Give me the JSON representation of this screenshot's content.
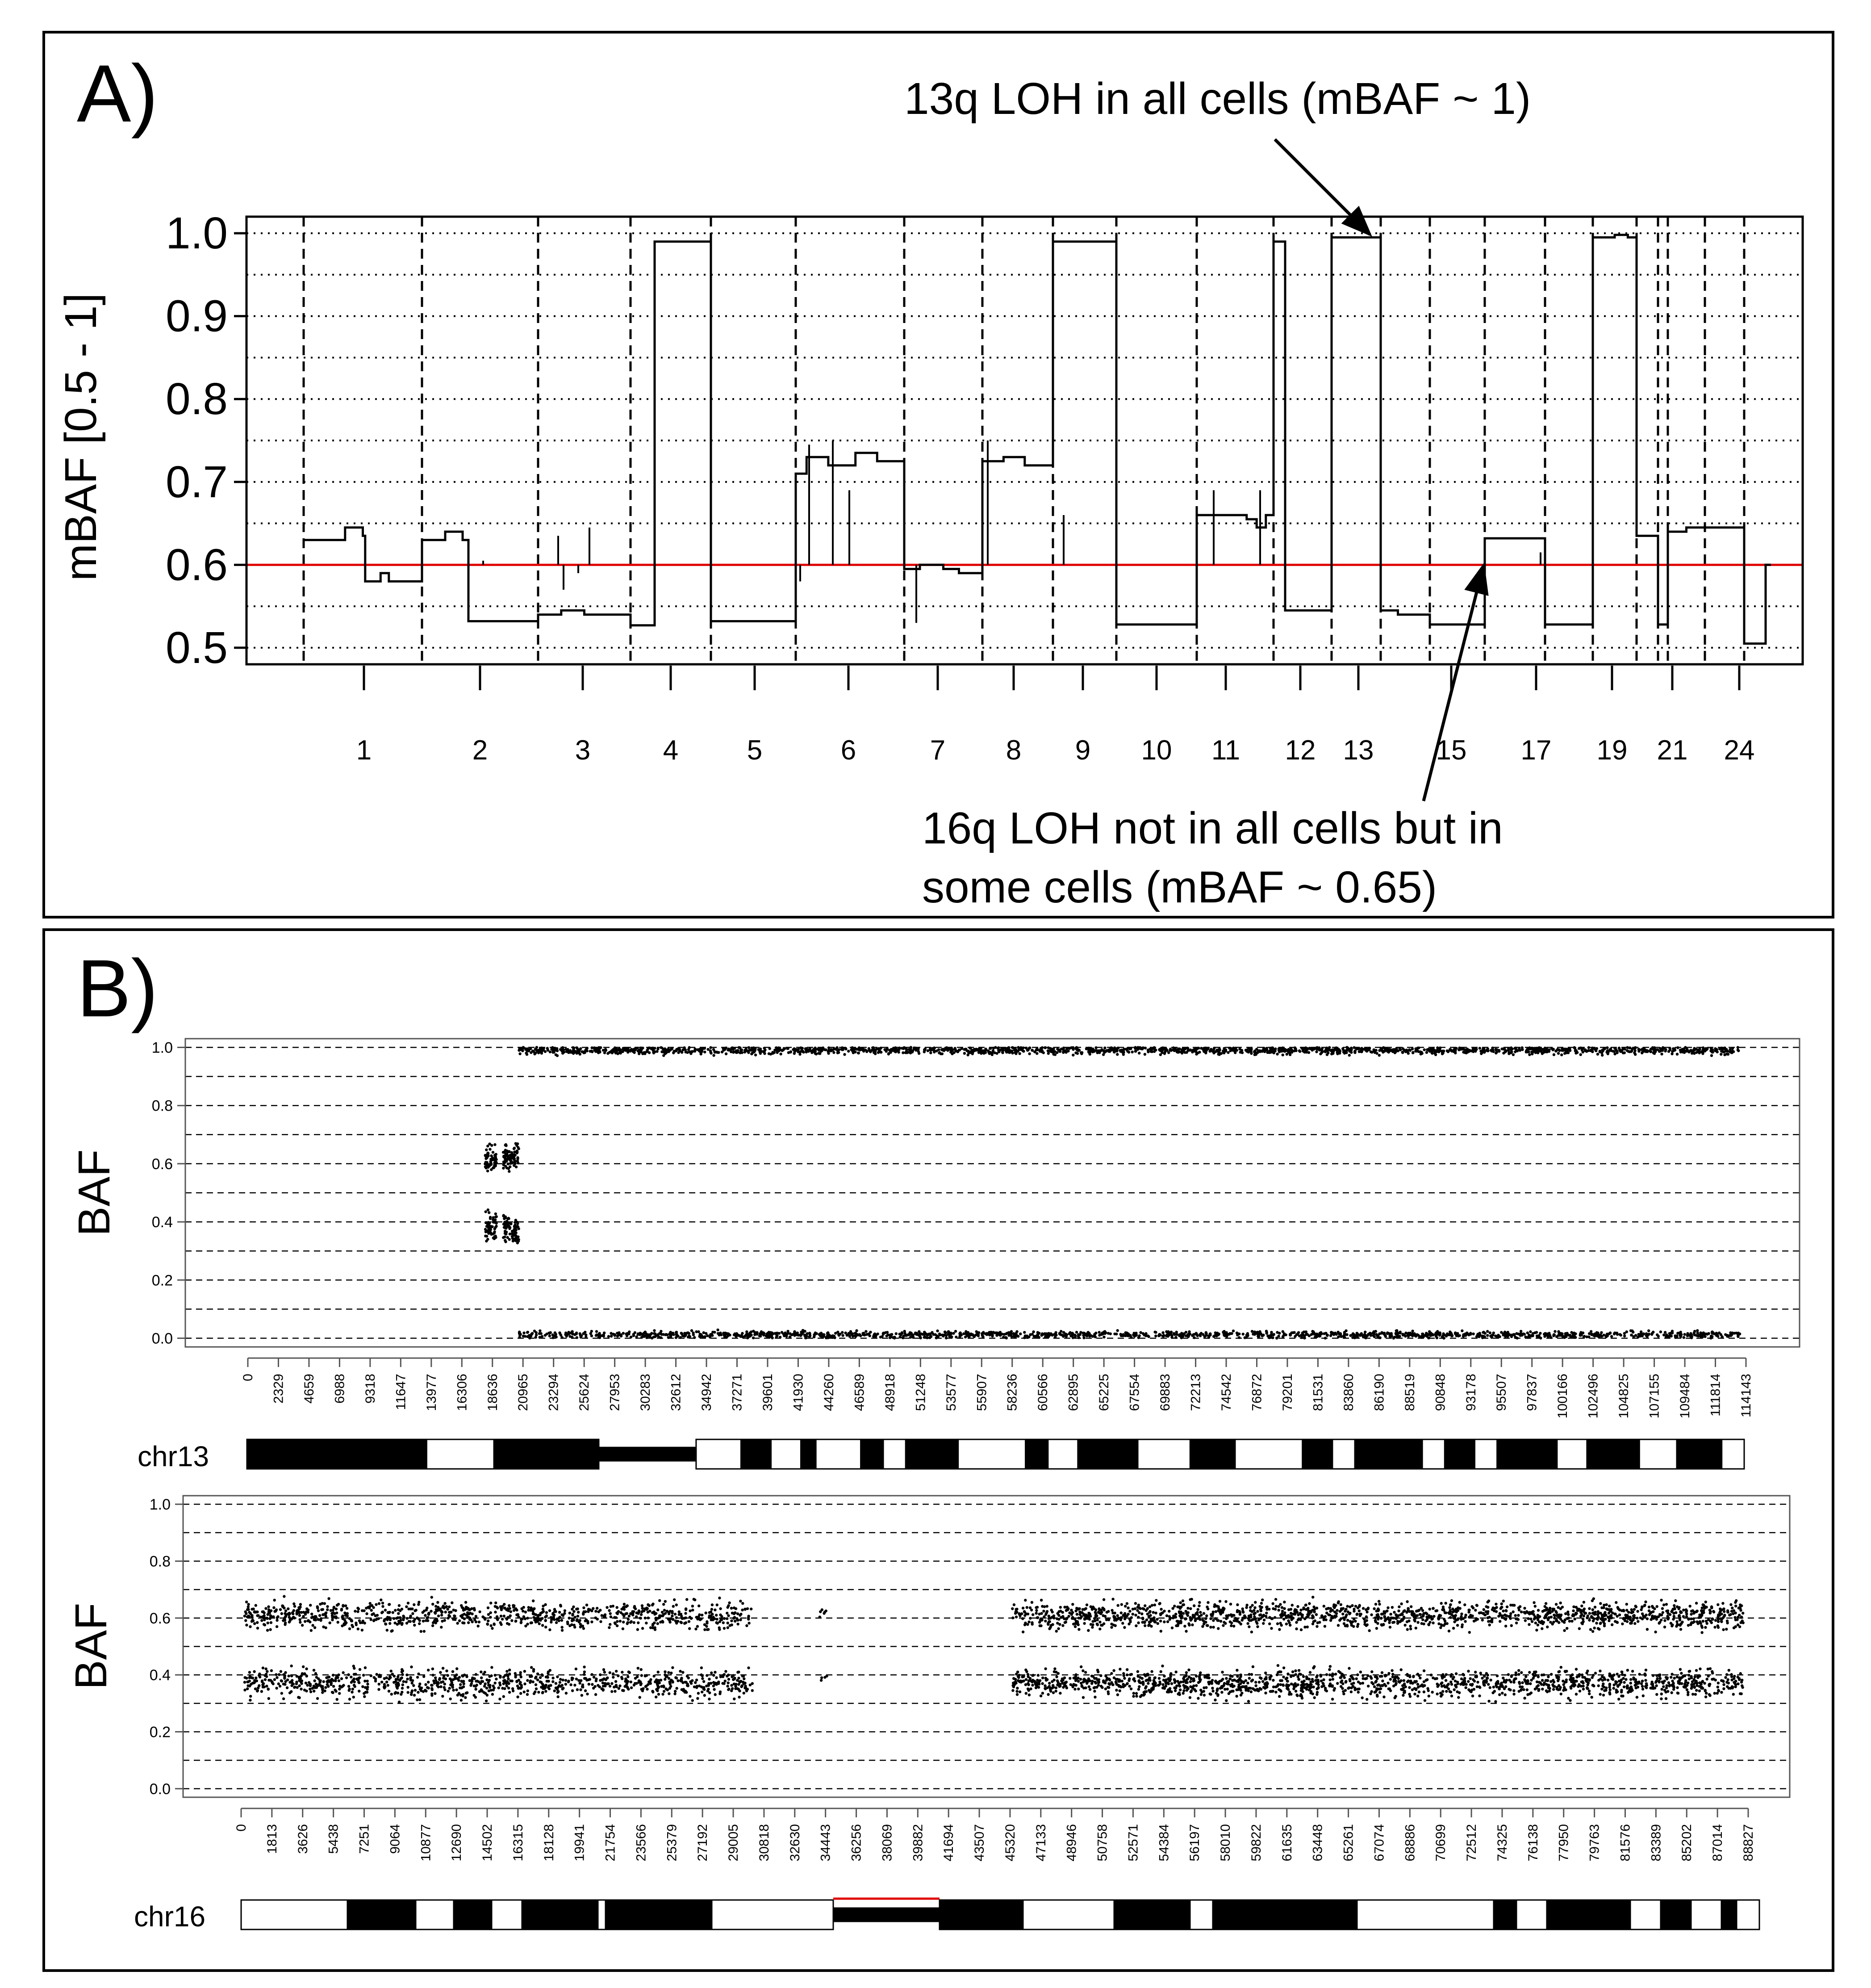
{
  "colors": {
    "reference_line": "#e00000",
    "ink": "#000000"
  },
  "chart_data": [
    {
      "panel_label": "A)",
      "type": "line",
      "ylabel": "mBAF [0.5 - 1]",
      "yticks": [
        "0.5",
        "0.6",
        "0.7",
        "0.8",
        "0.9",
        "1.0"
      ],
      "ylim": [
        0.48,
        1.02
      ],
      "x_tick_labels": [
        "1",
        "2",
        "3",
        "4",
        "5",
        "6",
        "7",
        "8",
        "9",
        "10",
        "11",
        "12",
        "13",
        "15",
        "17",
        "19",
        "21",
        "24"
      ],
      "grid": "dotted horizontal at 0.05 steps; dashed vertical chromosome boundaries",
      "reference_line": {
        "y": 0.6,
        "color": "red"
      },
      "series": [
        {
          "values": [
            {
              "chr": "1",
              "segments": [
                [
                  0.0,
                  0.35,
                  0.63
                ],
                [
                  0.35,
                  0.5,
                  0.645
                ],
                [
                  0.5,
                  0.52,
                  0.635
                ],
                [
                  0.52,
                  0.65,
                  0.58
                ],
                [
                  0.65,
                  0.72,
                  0.59
                ],
                [
                  0.72,
                  1.0,
                  0.58
                ]
              ]
            },
            {
              "chr": "2",
              "segments": [
                [
                  0.0,
                  0.2,
                  0.63
                ],
                [
                  0.2,
                  0.35,
                  0.64
                ],
                [
                  0.35,
                  0.4,
                  0.63
                ],
                [
                  0.4,
                  1.0,
                  0.532
                ]
              ]
            },
            {
              "chr": "3",
              "segments": [
                [
                  0.0,
                  0.25,
                  0.54
                ],
                [
                  0.25,
                  0.5,
                  0.545
                ],
                [
                  0.5,
                  1.0,
                  0.54
                ]
              ]
            },
            {
              "chr": "4",
              "segments": [
                [
                  0.0,
                  0.3,
                  0.527
                ],
                [
                  0.3,
                  1.0,
                  0.99
                ]
              ]
            },
            {
              "chr": "5",
              "segments": [
                [
                  0.0,
                  1.0,
                  0.532
                ]
              ]
            },
            {
              "chr": "6",
              "segments": [
                [
                  0.0,
                  0.1,
                  0.71
                ],
                [
                  0.1,
                  0.3,
                  0.73
                ],
                [
                  0.3,
                  0.55,
                  0.72
                ],
                [
                  0.55,
                  0.75,
                  0.735
                ],
                [
                  0.75,
                  1.0,
                  0.725
                ]
              ]
            },
            {
              "chr": "7",
              "segments": [
                [
                  0.0,
                  0.2,
                  0.595
                ],
                [
                  0.2,
                  0.5,
                  0.6
                ],
                [
                  0.5,
                  0.7,
                  0.595
                ],
                [
                  0.7,
                  1.0,
                  0.59
                ]
              ]
            },
            {
              "chr": "8",
              "segments": [
                [
                  0.0,
                  0.3,
                  0.725
                ],
                [
                  0.3,
                  0.6,
                  0.73
                ],
                [
                  0.6,
                  1.0,
                  0.72
                ]
              ]
            },
            {
              "chr": "9",
              "segments": [
                [
                  0.0,
                  1.0,
                  0.99
                ]
              ]
            },
            {
              "chr": "10",
              "segments": [
                [
                  0.0,
                  1.0,
                  0.528
                ]
              ]
            },
            {
              "chr": "11",
              "segments": [
                [
                  0.0,
                  0.65,
                  0.66
                ],
                [
                  0.65,
                  0.78,
                  0.655
                ],
                [
                  0.78,
                  0.9,
                  0.645
                ],
                [
                  0.9,
                  1.0,
                  0.66
                ]
              ]
            },
            {
              "chr": "12",
              "segments": [
                [
                  0.0,
                  0.2,
                  0.99
                ],
                [
                  0.2,
                  1.0,
                  0.545
                ]
              ]
            },
            {
              "chr": "13",
              "segments": [
                [
                  0.0,
                  1.0,
                  0.995
                ]
              ]
            },
            {
              "chr": "14",
              "segments": [
                [
                  0.0,
                  0.35,
                  0.545
                ],
                [
                  0.35,
                  1.0,
                  0.54
                ]
              ]
            },
            {
              "chr": "15",
              "segments": [
                [
                  0.0,
                  1.0,
                  0.528
                ]
              ]
            },
            {
              "chr": "16",
              "segments": [
                [
                  0.0,
                  1.0,
                  0.632
                ]
              ]
            },
            {
              "chr": "17",
              "segments": [
                [
                  0.0,
                  1.0,
                  0.528
                ]
              ]
            },
            {
              "chr": "18",
              "segments": [
                [
                  0.0,
                  0.5,
                  0.995
                ],
                [
                  0.5,
                  0.8,
                  0.998
                ],
                [
                  0.8,
                  1.0,
                  0.995
                ]
              ]
            },
            {
              "chr": "19",
              "segments": [
                [
                  0.0,
                  1.0,
                  0.635
                ]
              ]
            },
            {
              "chr": "20",
              "segments": [
                [
                  0.0,
                  1.0,
                  0.528
                ]
              ]
            },
            {
              "chr": "21",
              "segments": [
                [
                  0.0,
                  0.5,
                  0.64
                ],
                [
                  0.5,
                  1.0,
                  0.645
                ]
              ]
            },
            {
              "chr": "22",
              "segments": [
                [
                  0.0,
                  1.0,
                  0.645
                ]
              ]
            },
            {
              "chr": "23",
              "segments": [
                [
                  0.0,
                  0.8,
                  0.505
                ],
                [
                  0.8,
                  1.0,
                  0.6
                ]
              ]
            }
          ]
        }
      ],
      "annotations": [
        {
          "text": "13q LOH in all cells (mBAF ~ 1)",
          "points_to": {
            "chr": "13",
            "y": 0.995
          }
        },
        {
          "text_lines": [
            "16q LOH not in all cells but in",
            "some cells (mBAF ~ 0.65)"
          ],
          "points_to": {
            "chr": "16",
            "y": 0.632
          }
        }
      ]
    },
    {
      "panel_label": "B)",
      "type": "scatter",
      "ylabel": "BAF",
      "yticks": [
        "0.0",
        "0.2",
        "0.4",
        "0.6",
        "0.8",
        "1.0"
      ],
      "ylim": [
        -0.03,
        1.03
      ],
      "xlim": [
        0,
        116000
      ],
      "x_tick_labels": [
        "0",
        "2329",
        "4659",
        "6988",
        "9318",
        "11647",
        "13977",
        "16306",
        "18636",
        "20965",
        "23294",
        "25624",
        "27953",
        "30283",
        "32612",
        "34942",
        "37271",
        "39601",
        "41930",
        "44260",
        "46589",
        "48918",
        "51248",
        "53577",
        "55907",
        "58236",
        "60566",
        "62895",
        "65225",
        "67554",
        "69883",
        "72213",
        "74542",
        "76872",
        "79201",
        "81531",
        "83860",
        "86190",
        "88519",
        "90848",
        "93178",
        "95507",
        "97837",
        "100166",
        "102496",
        "104825",
        "107155",
        "109484",
        "111814",
        "114143"
      ],
      "chromosome": "chr13",
      "ideogram_bands": [
        [
          0,
          0.12,
          "black"
        ],
        [
          0.12,
          0.165,
          "white"
        ],
        [
          0.165,
          0.235,
          "black"
        ],
        [
          0.235,
          0.3,
          "centromere"
        ],
        [
          0.3,
          0.33,
          "white"
        ],
        [
          0.33,
          0.35,
          "black"
        ],
        [
          0.35,
          0.37,
          "white"
        ],
        [
          0.37,
          0.38,
          "black"
        ],
        [
          0.38,
          0.41,
          "white"
        ],
        [
          0.41,
          0.425,
          "black"
        ],
        [
          0.425,
          0.44,
          "white"
        ],
        [
          0.44,
          0.475,
          "black"
        ],
        [
          0.475,
          0.52,
          "white"
        ],
        [
          0.52,
          0.535,
          "black"
        ],
        [
          0.535,
          0.555,
          "white"
        ],
        [
          0.555,
          0.595,
          "black"
        ],
        [
          0.595,
          0.63,
          "white"
        ],
        [
          0.63,
          0.66,
          "black"
        ],
        [
          0.66,
          0.705,
          "white"
        ],
        [
          0.705,
          0.725,
          "black"
        ],
        [
          0.725,
          0.74,
          "white"
        ],
        [
          0.74,
          0.785,
          "black"
        ],
        [
          0.785,
          0.8,
          "white"
        ],
        [
          0.8,
          0.82,
          "black"
        ],
        [
          0.82,
          0.835,
          "white"
        ],
        [
          0.835,
          0.875,
          "black"
        ],
        [
          0.875,
          0.895,
          "white"
        ],
        [
          0.895,
          0.93,
          "black"
        ],
        [
          0.93,
          0.955,
          "white"
        ],
        [
          0.955,
          0.985,
          "black"
        ],
        [
          0.985,
          1.0,
          "white"
        ]
      ],
      "point_clusters": [
        {
          "x_from": 18200,
          "x_to": 19100,
          "y_center": 0.62,
          "y_spread": 0.08,
          "count": 60
        },
        {
          "x_from": 18200,
          "x_to": 19100,
          "y_center": 0.38,
          "y_spread": 0.08,
          "count": 60
        },
        {
          "x_from": 19600,
          "x_to": 20800,
          "y_center": 0.62,
          "y_spread": 0.07,
          "count": 80
        },
        {
          "x_from": 19600,
          "x_to": 20800,
          "y_center": 0.38,
          "y_spread": 0.07,
          "count": 80
        },
        {
          "x_from": 20800,
          "x_to": 114500,
          "y_center": 0.99,
          "y_spread": 0.02,
          "count": 1800
        },
        {
          "x_from": 20800,
          "x_to": 114500,
          "y_center": 0.012,
          "y_spread": 0.018,
          "count": 1500
        }
      ]
    },
    {
      "type": "scatter",
      "ylabel": "BAF",
      "yticks": [
        "0.0",
        "0.2",
        "0.4",
        "0.6",
        "0.8",
        "1.0"
      ],
      "ylim": [
        -0.03,
        1.03
      ],
      "xlim": [
        0,
        90700
      ],
      "x_tick_labels": [
        "0",
        "1813",
        "3626",
        "5438",
        "7251",
        "9064",
        "10877",
        "12690",
        "14502",
        "16315",
        "18128",
        "19941",
        "21754",
        "23566",
        "25379",
        "27192",
        "29005",
        "30818",
        "32630",
        "34443",
        "36256",
        "38069",
        "39882",
        "41694",
        "43507",
        "45320",
        "47133",
        "48946",
        "50758",
        "52571",
        "54384",
        "56197",
        "58010",
        "59822",
        "61635",
        "63448",
        "65261",
        "67074",
        "68886",
        "70699",
        "72512",
        "74325",
        "76138",
        "77950",
        "79763",
        "81576",
        "83389",
        "85202",
        "87014",
        "88827"
      ],
      "chromosome": "chr16",
      "ideogram_bands": [
        [
          0,
          0.07,
          "white"
        ],
        [
          0.07,
          0.115,
          "black"
        ],
        [
          0.115,
          0.14,
          "white"
        ],
        [
          0.14,
          0.165,
          "black"
        ],
        [
          0.165,
          0.185,
          "white"
        ],
        [
          0.185,
          0.235,
          "black"
        ],
        [
          0.235,
          0.24,
          "white"
        ],
        [
          0.24,
          0.31,
          "black"
        ],
        [
          0.31,
          0.39,
          "white"
        ],
        [
          0.39,
          0.46,
          "centromere"
        ],
        [
          0.46,
          0.515,
          "black"
        ],
        [
          0.515,
          0.575,
          "white"
        ],
        [
          0.575,
          0.625,
          "black"
        ],
        [
          0.625,
          0.64,
          "white"
        ],
        [
          0.64,
          0.735,
          "black"
        ],
        [
          0.735,
          0.825,
          "white"
        ],
        [
          0.825,
          0.84,
          "black"
        ],
        [
          0.84,
          0.86,
          "white"
        ],
        [
          0.86,
          0.915,
          "black"
        ],
        [
          0.915,
          0.935,
          "white"
        ],
        [
          0.935,
          0.955,
          "black"
        ],
        [
          0.955,
          0.975,
          "white"
        ],
        [
          0.975,
          0.985,
          "black"
        ],
        [
          0.985,
          1.0,
          "white"
        ]
      ],
      "point_clusters": [
        {
          "x_from": 200,
          "x_to": 30500,
          "y_center": 0.61,
          "y_spread": 0.07,
          "count": 900
        },
        {
          "x_from": 200,
          "x_to": 30500,
          "y_center": 0.37,
          "y_spread": 0.07,
          "count": 900
        },
        {
          "x_from": 34500,
          "x_to": 35000,
          "y_center": 0.62,
          "y_spread": 0.05,
          "count": 6
        },
        {
          "x_from": 34500,
          "x_to": 35000,
          "y_center": 0.38,
          "y_spread": 0.05,
          "count": 4
        },
        {
          "x_from": 46000,
          "x_to": 89600,
          "y_center": 0.61,
          "y_spread": 0.07,
          "count": 1500
        },
        {
          "x_from": 46000,
          "x_to": 89600,
          "y_center": 0.37,
          "y_spread": 0.07,
          "count": 1500
        }
      ]
    }
  ]
}
